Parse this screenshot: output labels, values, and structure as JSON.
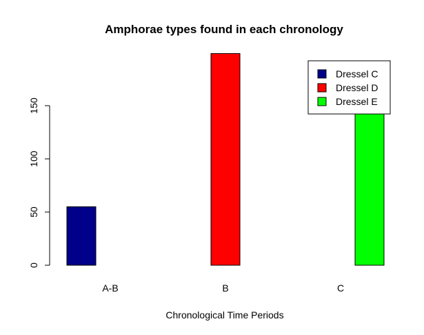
{
  "chart_data": {
    "type": "bar",
    "title": "Amphorae types found in each chronology",
    "xlabel": "Chronological Time Periods",
    "ylabel": "",
    "categories": [
      "A-B",
      "B",
      "C"
    ],
    "series": [
      {
        "name": "Dressel C",
        "color": "#00008b",
        "values": [
          55,
          0,
          0
        ]
      },
      {
        "name": "Dressel D",
        "color": "#ff0000",
        "values": [
          0,
          199,
          0
        ]
      },
      {
        "name": "Dressel E",
        "color": "#00ff00",
        "values": [
          0,
          0,
          157
        ]
      }
    ],
    "yticks": [
      0,
      50,
      100,
      150
    ],
    "ylim": [
      0,
      199
    ],
    "grid": false,
    "legend_position": "top-right"
  }
}
